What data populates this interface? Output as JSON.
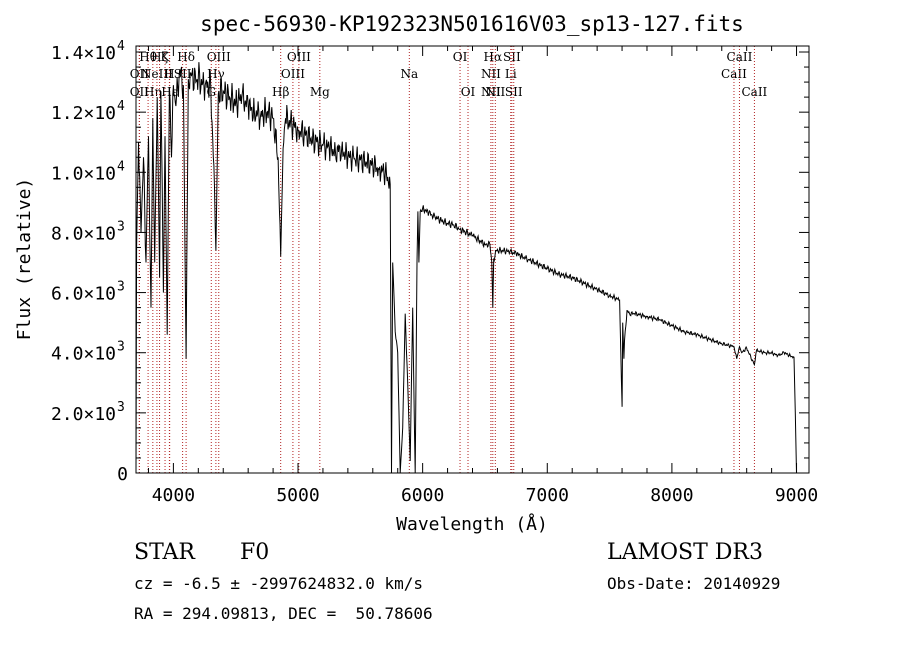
{
  "chart_data": {
    "type": "line",
    "title": "spec-56930-KP192323N501616V03_sp13-127.fits",
    "xlabel": "Wavelength (Å)",
    "ylabel": "Flux (relative)",
    "xlim": [
      3700,
      9100
    ],
    "ylim": [
      0,
      14200
    ],
    "x_ticks": [
      {
        "value": 4000,
        "label": "4000"
      },
      {
        "value": 5000,
        "label": "5000"
      },
      {
        "value": 6000,
        "label": "6000"
      },
      {
        "value": 7000,
        "label": "7000"
      },
      {
        "value": 8000,
        "label": "8000"
      },
      {
        "value": 9000,
        "label": "9000"
      }
    ],
    "y_ticks": [
      {
        "value": 0,
        "mant": "0",
        "exp": ""
      },
      {
        "value": 2000,
        "mant": "2.0×10",
        "exp": "3"
      },
      {
        "value": 4000,
        "mant": "4.0×10",
        "exp": "3"
      },
      {
        "value": 6000,
        "mant": "6.0×10",
        "exp": "3"
      },
      {
        "value": 8000,
        "mant": "8.0×10",
        "exp": "3"
      },
      {
        "value": 10000,
        "mant": "1.0×10",
        "exp": "4"
      },
      {
        "value": 12000,
        "mant": "1.2×10",
        "exp": "4"
      },
      {
        "value": 14000,
        "mant": "1.4×10",
        "exp": "4"
      }
    ],
    "series": [
      {
        "name": "spectrum",
        "x": [
          3700,
          3705,
          3720,
          3740,
          3760,
          3780,
          3800,
          3820,
          3835,
          3850,
          3870,
          3889,
          3900,
          3920,
          3933,
          3950,
          3968,
          3985,
          4000,
          4020,
          4050,
          4080,
          4102,
          4120,
          4150,
          4180,
          4200,
          4230,
          4260,
          4300,
          4330,
          4341,
          4360,
          4400,
          4450,
          4500,
          4550,
          4600,
          4650,
          4700,
          4750,
          4800,
          4840,
          4861,
          4880,
          4900,
          4950,
          5000,
          5050,
          5100,
          5150,
          5200,
          5250,
          5300,
          5350,
          5400,
          5450,
          5500,
          5550,
          5600,
          5650,
          5700,
          5740,
          5750,
          5760,
          5780,
          5800,
          5820,
          5840,
          5860,
          5880,
          5900,
          5920,
          5940,
          5955,
          5962,
          5970,
          5980,
          6000,
          6050,
          6100,
          6150,
          6200,
          6250,
          6300,
          6350,
          6400,
          6450,
          6500,
          6540,
          6555,
          6563,
          6570,
          6590,
          6650,
          6700,
          6750,
          6800,
          6850,
          6900,
          7000,
          7100,
          7200,
          7300,
          7400,
          7500,
          7580,
          7600,
          7605,
          7615,
          7620,
          7640,
          7660,
          7700,
          7800,
          7900,
          8000,
          8100,
          8200,
          8300,
          8400,
          8498,
          8520,
          8542,
          8560,
          8600,
          8662,
          8680,
          8700,
          8750,
          8800,
          8850,
          8900,
          8950,
          8980,
          8990,
          9000
        ],
        "y": [
          0,
          7500,
          11000,
          8000,
          10500,
          7000,
          11200,
          5500,
          11800,
          7000,
          12500,
          6500,
          12700,
          6000,
          11200,
          4600,
          12800,
          10500,
          12900,
          12200,
          13400,
          12900,
          3800,
          13100,
          13300,
          13000,
          13150,
          12900,
          13000,
          12800,
          9500,
          7400,
          12600,
          12700,
          12500,
          12300,
          12500,
          12200,
          12000,
          11900,
          12000,
          11800,
          10500,
          7200,
          10800,
          11800,
          11600,
          11400,
          11300,
          11100,
          11000,
          10900,
          10800,
          10700,
          10750,
          10500,
          10450,
          10400,
          10300,
          10250,
          10100,
          10000,
          9600,
          0,
          7000,
          4700,
          4000,
          0,
          1500,
          5300,
          3000,
          400,
          5500,
          0,
          7000,
          8700,
          7000,
          8700,
          8800,
          8650,
          8500,
          8400,
          8300,
          8250,
          8100,
          8000,
          7900,
          7750,
          7600,
          7600,
          7000,
          5500,
          7100,
          7400,
          7400,
          7350,
          7300,
          7200,
          7100,
          7000,
          6800,
          6600,
          6500,
          6300,
          6100,
          5900,
          5750,
          2200,
          5000,
          3800,
          4400,
          5400,
          5300,
          5300,
          5200,
          5100,
          4900,
          4700,
          4600,
          4450,
          4300,
          4200,
          3800,
          4200,
          4000,
          4150,
          3600,
          4100,
          4050,
          4000,
          4000,
          3900,
          4000,
          3900,
          3850,
          2000,
          0
        ]
      }
    ],
    "spectral_lines": [
      {
        "wl": 3727,
        "label": "OII",
        "row": 2
      },
      {
        "wl": 3727,
        "label": "OII",
        "row": 3
      },
      {
        "wl": 3797,
        "label": "Hθ",
        "row": 1
      },
      {
        "wl": 3835,
        "label": "Hη",
        "row": 3
      },
      {
        "wl": 3868,
        "label": "NeIII",
        "row": 2
      },
      {
        "wl": 3889,
        "label": "Hζ",
        "row": 1
      },
      {
        "wl": 3933,
        "label": "K",
        "row": 1
      },
      {
        "wl": 3968,
        "label": "H",
        "row": 2
      },
      {
        "wl": 3970,
        "label": "Hε",
        "row": 3
      },
      {
        "wl": 4102,
        "label": "Hδ",
        "row": 1
      },
      {
        "wl": 4074,
        "label": "SII",
        "row": 2
      },
      {
        "wl": 4304,
        "label": "G",
        "row": 3
      },
      {
        "wl": 4341,
        "label": "Hγ",
        "row": 2
      },
      {
        "wl": 4364,
        "label": "OIII",
        "row": 1
      },
      {
        "wl": 4861,
        "label": "Hβ",
        "row": 3
      },
      {
        "wl": 4959,
        "label": "OIII",
        "row": 2
      },
      {
        "wl": 5007,
        "label": "OIII",
        "row": 1
      },
      {
        "wl": 5175,
        "label": "Mg",
        "row": 3
      },
      {
        "wl": 5893,
        "label": "Na",
        "row": 2
      },
      {
        "wl": 6300,
        "label": "OI",
        "row": 1
      },
      {
        "wl": 6364,
        "label": "OI",
        "row": 3
      },
      {
        "wl": 6548,
        "label": "NII",
        "row": 2
      },
      {
        "wl": 6548,
        "label": "NII",
        "row": 3
      },
      {
        "wl": 6563,
        "label": "Hα",
        "row": 1
      },
      {
        "wl": 6583,
        "label": "NII",
        "row": 3
      },
      {
        "wl": 6707,
        "label": "Li",
        "row": 2
      },
      {
        "wl": 6716,
        "label": "SII",
        "row": 1
      },
      {
        "wl": 6731,
        "label": "SII",
        "row": 3
      },
      {
        "wl": 8498,
        "label": "CaII",
        "row": 2
      },
      {
        "wl": 8542,
        "label": "CaII",
        "row": 1
      },
      {
        "wl": 8662,
        "label": "CaII",
        "row": 3
      }
    ]
  },
  "info": {
    "object_class": "STAR",
    "subclass": "F0",
    "survey": "LAMOST DR3",
    "cz_line": "cz = -6.5 ± -2997624832.0 km/s",
    "obs_date": "Obs-Date: 20140929",
    "radec": "RA = 294.09813, DEC =  50.78606"
  },
  "colors": {
    "line_marker": "#b22222",
    "spectrum": "#000000",
    "axes": "#000000"
  }
}
